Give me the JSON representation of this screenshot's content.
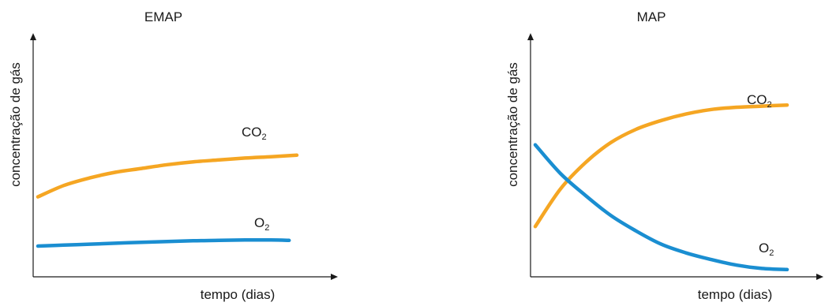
{
  "chart_data": [
    {
      "type": "line",
      "title": "EMAP",
      "xlabel": "tempo (dias)",
      "ylabel": "concentração de gás",
      "xlim": [
        0,
        10
      ],
      "ylim": [
        0,
        10
      ],
      "grid": false,
      "legend": "inline labels",
      "series": [
        {
          "name": "CO",
          "subscript": "2",
          "color": "#f5a623",
          "x": [
            0,
            1,
            2,
            3,
            4,
            5,
            6,
            7,
            8,
            9,
            10
          ],
          "y": [
            3.6,
            4.2,
            4.6,
            4.9,
            5.1,
            5.3,
            5.45,
            5.55,
            5.65,
            5.72,
            5.8
          ]
        },
        {
          "name": "O",
          "subscript": "2",
          "color": "#1a8ed1",
          "x": [
            0,
            1,
            2,
            3,
            4,
            5,
            6,
            7,
            8,
            9,
            9.7
          ],
          "y": [
            1.0,
            1.05,
            1.1,
            1.15,
            1.2,
            1.24,
            1.28,
            1.3,
            1.32,
            1.32,
            1.3
          ]
        }
      ]
    },
    {
      "type": "line",
      "title": "MAP",
      "xlabel": "tempo (dias)",
      "ylabel": "concentração de gás",
      "xlim": [
        0,
        10
      ],
      "ylim": [
        0,
        10
      ],
      "grid": false,
      "legend": "inline labels",
      "series": [
        {
          "name": "CO",
          "subscript": "2",
          "color": "#f5a623",
          "x": [
            0,
            1,
            2,
            3,
            4,
            5,
            6,
            7,
            8,
            9,
            10
          ],
          "y": [
            2.1,
            3.8,
            5.0,
            5.9,
            6.5,
            6.9,
            7.2,
            7.4,
            7.5,
            7.55,
            7.6
          ]
        },
        {
          "name": "O",
          "subscript": "2",
          "color": "#1a8ed1",
          "x": [
            0,
            1,
            2,
            3,
            4,
            5,
            6,
            7,
            8,
            9,
            10
          ],
          "y": [
            5.8,
            4.5,
            3.5,
            2.6,
            1.9,
            1.3,
            0.9,
            0.6,
            0.35,
            0.2,
            0.15
          ]
        }
      ]
    }
  ]
}
